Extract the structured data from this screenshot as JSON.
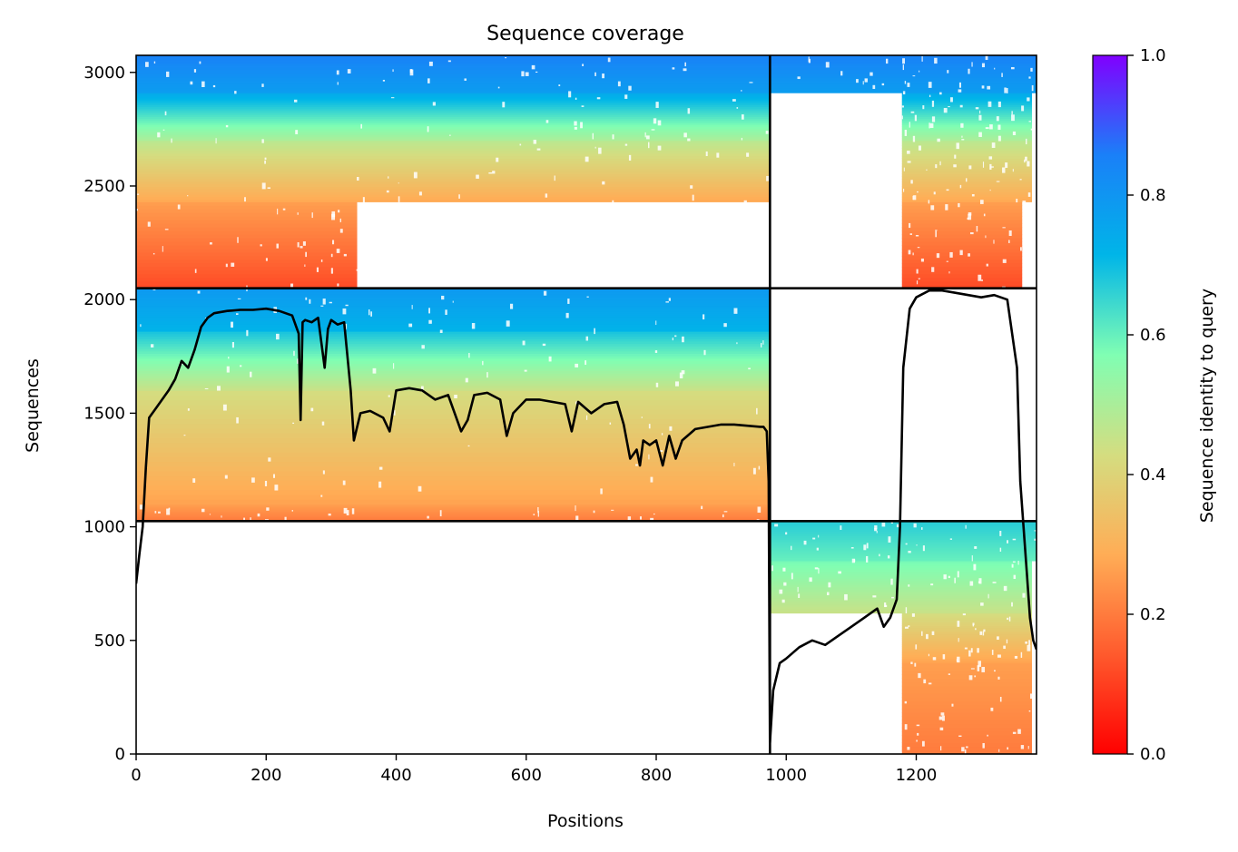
{
  "chart_data": {
    "type": "heatmap",
    "title": "Sequence coverage",
    "xlabel": "Positions",
    "ylabel": "Sequences",
    "xlim": [
      0,
      1385
    ],
    "ylim": [
      0,
      3075
    ],
    "xticks": [
      0,
      200,
      400,
      600,
      800,
      1000,
      1200
    ],
    "yticks": [
      0,
      500,
      1000,
      1500,
      2000,
      2500,
      3000
    ],
    "colorbar": {
      "label": "Sequence identity to query",
      "range": [
        0.0,
        1.0
      ],
      "ticks": [
        "0.0",
        "0.2",
        "0.4",
        "0.6",
        "0.8",
        "1.0"
      ],
      "colormap": "rainbow",
      "stops": [
        "#ff0000",
        "#ff5a2d",
        "#ffad56",
        "#d4dd80",
        "#80feb3",
        "#00b5e8",
        "#1a80f8",
        "#8000ff"
      ]
    },
    "chain_boundaries": {
      "x": [
        975
      ],
      "y": [
        1025,
        2050
      ]
    },
    "blocks": [
      {
        "x": [
          0,
          975
        ],
        "y": [
          2050,
          3075
        ],
        "rows": [
          {
            "y": [
              2050,
              2430
            ],
            "x": [
              0,
              340
            ],
            "identity": 0.12
          },
          {
            "y": [
              2430,
              2700
            ],
            "x": [
              0,
              975
            ],
            "identity": 0.28
          },
          {
            "y": [
              2700,
              2910
            ],
            "x": [
              0,
              975
            ],
            "identity": 0.5
          },
          {
            "y": [
              2910,
              3075
            ],
            "x": [
              0,
              975
            ],
            "identity": 0.78
          }
        ]
      },
      {
        "x": [
          975,
          1385
        ],
        "y": [
          2050,
          3075
        ],
        "rows": [
          {
            "y": [
              2050,
              2430
            ],
            "x": [
              1178,
              1363
            ],
            "identity": 0.12
          },
          {
            "y": [
              2430,
              2700
            ],
            "x": [
              1178,
              1378
            ],
            "identity": 0.28
          },
          {
            "y": [
              2700,
              2910
            ],
            "x": [
              1178,
              1378
            ],
            "identity": 0.5
          },
          {
            "y": [
              2910,
              3075
            ],
            "x": [
              975,
              1385
            ],
            "identity": 0.78
          }
        ]
      },
      {
        "x": [
          0,
          975
        ],
        "y": [
          1025,
          2050
        ],
        "rows": [
          {
            "y": [
              1025,
              1100
            ],
            "x": [
              0,
              975
            ],
            "identity": 0.2
          },
          {
            "y": [
              1100,
              1600
            ],
            "x": [
              0,
              975
            ],
            "identity": 0.27
          },
          {
            "y": [
              1600,
              1860
            ],
            "x": [
              0,
              975
            ],
            "identity": 0.45
          },
          {
            "y": [
              1860,
              2050
            ],
            "x": [
              0,
              975
            ],
            "identity": 0.72
          }
        ]
      },
      {
        "x": [
          975,
          1385
        ],
        "y": [
          0,
          1025
        ],
        "rows": [
          {
            "y": [
              0,
              400
            ],
            "x": [
              1178,
              1378
            ],
            "identity": 0.2
          },
          {
            "y": [
              400,
              620
            ],
            "x": [
              1178,
              1378
            ],
            "identity": 0.27
          },
          {
            "y": [
              620,
              850
            ],
            "x": [
              975,
              1378
            ],
            "identity": 0.45
          },
          {
            "y": [
              850,
              1025
            ],
            "x": [
              975,
              1385
            ],
            "identity": 0.6
          }
        ]
      }
    ],
    "coverage_line": {
      "x": [
        0,
        5,
        10,
        15,
        20,
        30,
        40,
        50,
        60,
        70,
        80,
        90,
        100,
        110,
        120,
        140,
        160,
        180,
        200,
        220,
        240,
        250,
        253,
        256,
        260,
        270,
        280,
        290,
        295,
        300,
        310,
        320,
        330,
        335,
        345,
        360,
        380,
        390,
        400,
        420,
        440,
        460,
        480,
        500,
        510,
        520,
        540,
        560,
        570,
        580,
        600,
        620,
        640,
        660,
        670,
        680,
        700,
        720,
        740,
        750,
        760,
        770,
        775,
        780,
        790,
        800,
        810,
        820,
        830,
        840,
        860,
        880,
        900,
        920,
        940,
        960,
        965,
        970,
        973,
        975,
        980,
        990,
        1000,
        1020,
        1040,
        1060,
        1080,
        1100,
        1120,
        1140,
        1150,
        1160,
        1170,
        1175,
        1180,
        1190,
        1200,
        1220,
        1240,
        1260,
        1280,
        1300,
        1320,
        1340,
        1355,
        1360,
        1365,
        1370,
        1375,
        1380,
        1385
      ],
      "y": [
        750,
        880,
        1000,
        1260,
        1480,
        1520,
        1560,
        1600,
        1650,
        1730,
        1700,
        1780,
        1880,
        1920,
        1940,
        1950,
        1955,
        1955,
        1960,
        1950,
        1930,
        1850,
        1470,
        1900,
        1910,
        1900,
        1920,
        1700,
        1870,
        1910,
        1890,
        1900,
        1600,
        1380,
        1500,
        1510,
        1480,
        1420,
        1600,
        1610,
        1600,
        1560,
        1580,
        1420,
        1470,
        1580,
        1590,
        1560,
        1400,
        1500,
        1560,
        1560,
        1550,
        1540,
        1420,
        1550,
        1500,
        1540,
        1550,
        1450,
        1300,
        1340,
        1270,
        1380,
        1360,
        1380,
        1270,
        1400,
        1300,
        1380,
        1430,
        1440,
        1450,
        1450,
        1445,
        1440,
        1440,
        1420,
        1200,
        50,
        280,
        400,
        420,
        470,
        500,
        480,
        520,
        560,
        600,
        640,
        560,
        600,
        680,
        1000,
        1700,
        1960,
        2010,
        2040,
        2040,
        2030,
        2020,
        2010,
        2020,
        2000,
        1700,
        1200,
        1000,
        800,
        600,
        500,
        460
      ]
    }
  }
}
